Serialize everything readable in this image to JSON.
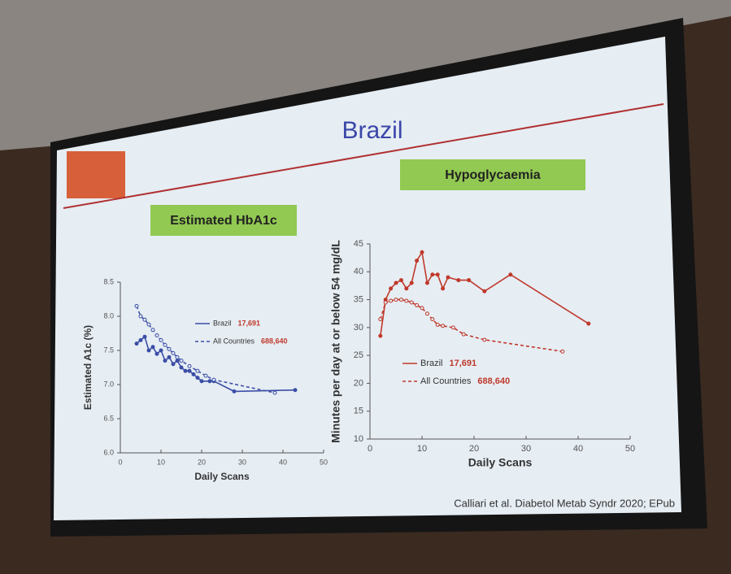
{
  "slide": {
    "title": "Brazil",
    "citation": "Calliari et al. Diabetol Metab Syndr 2020; EPub"
  },
  "chart_data": [
    {
      "type": "line",
      "title": "Estimated HbA1c",
      "x_label": "Daily Scans",
      "y_label": "Estimated A1c (%)",
      "xlim": [
        0,
        50
      ],
      "xticks": [
        0,
        10,
        20,
        30,
        40,
        50
      ],
      "ylim": [
        6,
        8.5
      ],
      "yticks": [
        {
          "value": 6,
          "label": "6.0"
        },
        6.5,
        {
          "value": 7,
          "label": "7.0"
        },
        7.5,
        {
          "value": 8,
          "label": "8.0"
        },
        8.5
      ],
      "series": [
        {
          "name": "Brazil",
          "n_label": "17,691",
          "color": "#3b4ea6",
          "dashed": false,
          "x": [
            4,
            5,
            6,
            7,
            8,
            9,
            10,
            11,
            12,
            13,
            14,
            15,
            16,
            17,
            18,
            19,
            20,
            22,
            23,
            28,
            43
          ],
          "values": [
            7.6,
            7.65,
            7.7,
            7.5,
            7.55,
            7.45,
            7.5,
            7.35,
            7.4,
            7.3,
            7.35,
            7.25,
            7.2,
            7.2,
            7.15,
            7.1,
            7.05,
            7.05,
            7.05,
            6.9,
            6.92
          ]
        },
        {
          "name": "All Countries",
          "n_label": "688,640",
          "color": "#3b4ea6",
          "dashed": true,
          "x": [
            4,
            5,
            6,
            7,
            8,
            9,
            10,
            11,
            12,
            13,
            14,
            15,
            17,
            19,
            21,
            23,
            38
          ],
          "values": [
            8.15,
            8.0,
            7.95,
            7.88,
            7.8,
            7.72,
            7.65,
            7.58,
            7.52,
            7.46,
            7.4,
            7.35,
            7.27,
            7.2,
            7.13,
            7.07,
            6.88
          ]
        }
      ]
    },
    {
      "type": "line",
      "title": "Hypoglycaemia",
      "x_label": "Daily Scans",
      "y_label": "Minutes per day at or below 54 mg/dL",
      "xlim": [
        0,
        50
      ],
      "xticks": [
        0,
        10,
        20,
        30,
        40,
        50
      ],
      "ylim": [
        10,
        45
      ],
      "yticks": [
        10,
        15,
        20,
        25,
        30,
        35,
        40,
        45
      ],
      "series": [
        {
          "name": "Brazil",
          "n_label": "17,691",
          "color": "#c0392b",
          "dashed": false,
          "x": [
            2,
            3,
            4,
            5,
            6,
            7,
            8,
            9,
            10,
            11,
            12,
            13,
            14,
            15,
            17,
            19,
            22,
            27,
            42
          ],
          "values": [
            28.5,
            35,
            37,
            38,
            38.5,
            37,
            38,
            42,
            43.5,
            38,
            39.5,
            39.5,
            37,
            39,
            38.5,
            38.5,
            36.5,
            39.5,
            30.7
          ]
        },
        {
          "name": "All Countries",
          "n_label": "688,640",
          "color": "#c0392b",
          "dashed": true,
          "x": [
            2,
            3,
            4,
            5,
            6,
            7,
            8,
            9,
            10,
            11,
            12,
            13,
            14,
            16,
            18,
            22,
            37
          ],
          "values": [
            31.5,
            34.5,
            34.8,
            35,
            35,
            34.8,
            34.5,
            34,
            33.5,
            32.5,
            31.5,
            30.5,
            30.3,
            30,
            28.8,
            27.8,
            25.7
          ]
        }
      ]
    }
  ]
}
